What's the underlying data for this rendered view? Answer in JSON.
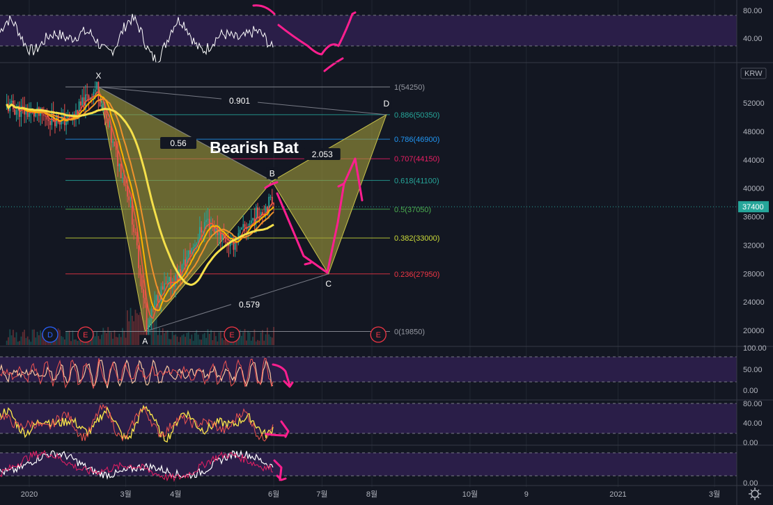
{
  "chart_data": [
    {
      "type": "candlestick",
      "panel": "main",
      "currency_badge": "KRW",
      "title": "Bearish Bat",
      "current_price": 37400,
      "ylim": [
        18000,
        57000
      ],
      "y_ticks": [
        "52000",
        "48000",
        "44000",
        "40000",
        "36000",
        "32000",
        "28000",
        "24000",
        "20000"
      ],
      "x_ticks": [
        "2020",
        "3월",
        "4월",
        "6월",
        "7월",
        "8월",
        "10월",
        "9",
        "2021",
        "3월"
      ],
      "pattern_points": [
        {
          "label": "X",
          "date": "2020-02-13",
          "price": 54250
        },
        {
          "label": "A",
          "date": "2020-03-13",
          "price": 19850
        },
        {
          "label": "B",
          "date": "2020-05-31",
          "price": 41000
        },
        {
          "label": "C",
          "date": "2020-07-05",
          "price": 27950
        },
        {
          "label": "D",
          "date": "2020-08-10",
          "price": 50350
        }
      ],
      "pattern_ratios": [
        "0.901",
        "0.56",
        "2.053",
        "0.579"
      ],
      "fib_levels": [
        {
          "label": "1(54250)",
          "price": 54250,
          "color": "#9598a1"
        },
        {
          "label": "0.886(50350)",
          "price": 50350,
          "color": "#26a69a"
        },
        {
          "label": "0.786(46900)",
          "price": 46900,
          "color": "#2196f3"
        },
        {
          "label": "0.707(44150)",
          "price": 44150,
          "color": "#e91e63"
        },
        {
          "label": "0.618(41100)",
          "price": 41100,
          "color": "#26a69a"
        },
        {
          "label": "0.5(37050)",
          "price": 37050,
          "color": "#4caf50"
        },
        {
          "label": "0.382(33000)",
          "price": 33000,
          "color": "#cddc39"
        },
        {
          "label": "0.236(27950)",
          "price": 27950,
          "color": "#f23645"
        },
        {
          "label": "0(19850)",
          "price": 19850,
          "color": "#9598a1"
        }
      ],
      "event_markers": [
        {
          "label": "D",
          "date": "2020-01-14",
          "color": "#2962ff"
        },
        {
          "label": "E",
          "date": "2020-02-05",
          "color": "#f23645"
        },
        {
          "label": "E",
          "date": "2020-05-06",
          "color": "#f23645"
        },
        {
          "label": "E",
          "date": "2020-08-05",
          "color": "#f23645"
        }
      ]
    },
    {
      "type": "line",
      "panel": "rsi",
      "y_ticks": [
        "80.00",
        "40.00"
      ]
    },
    {
      "type": "line",
      "panel": "osc1",
      "y_ticks": [
        "100.00",
        "50.00",
        "0.00"
      ]
    },
    {
      "type": "line",
      "panel": "osc2",
      "y_ticks": [
        "80.00",
        "40.00",
        "0.00"
      ]
    },
    {
      "type": "line",
      "panel": "osc3",
      "y_ticks": [
        "0.00"
      ]
    }
  ],
  "colors": {
    "background": "#131722",
    "pattern_fill": "#9e9a3a",
    "ma_fast": "#f0932b",
    "ma_mid": "#ffb300",
    "ma_slow": "#f5e04a",
    "ma_red": "#f3583f",
    "candle_up": "#26a69a",
    "candle_down": "#ef5350",
    "annotation": "#ff1f8f",
    "band_fill": "#2a1e48",
    "price_badge": "#26a69a"
  },
  "icons": {
    "settings": "gear-icon"
  }
}
